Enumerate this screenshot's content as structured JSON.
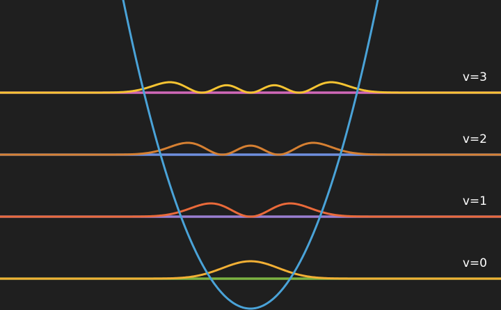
{
  "background": "#1f1f1f",
  "potential": {
    "type": "parabola",
    "color": "#4aa3d8"
  },
  "levels": [
    {
      "label": "v=0",
      "quantum_number": 0,
      "line_color": "#7cb342",
      "density_color": "#f2b035"
    },
    {
      "label": "v=1",
      "quantum_number": 1,
      "line_color": "#9a7fd1",
      "density_color": "#ea6a3a"
    },
    {
      "label": "v=2",
      "quantum_number": 2,
      "line_color": "#6f8fdd",
      "density_color": "#d68032"
    },
    {
      "label": "v=3",
      "quantum_number": 3,
      "line_color": "#d068b8",
      "density_color": "#f6c432"
    }
  ]
}
